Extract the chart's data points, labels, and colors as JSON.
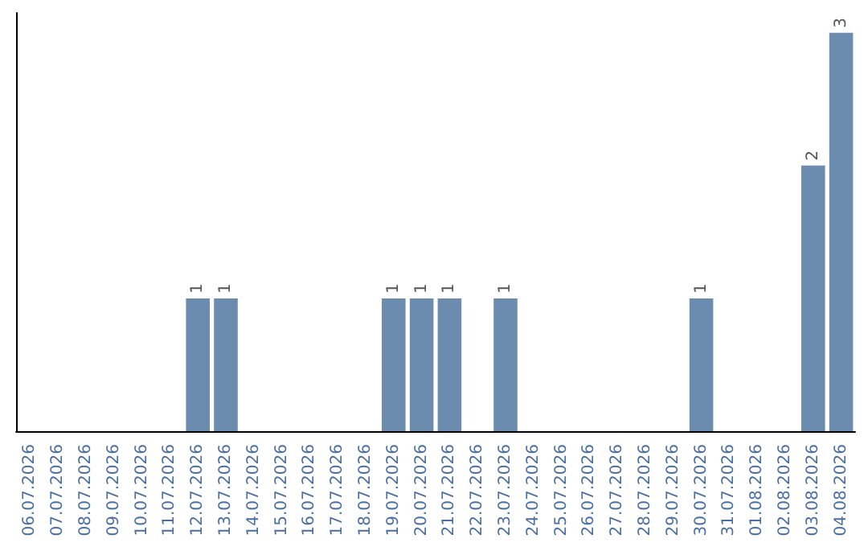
{
  "chart_data": {
    "type": "bar",
    "categories": [
      "06.07.2026",
      "07.07.2026",
      "08.07.2026",
      "09.07.2026",
      "10.07.2026",
      "11.07.2026",
      "12.07.2026",
      "13.07.2026",
      "14.07.2026",
      "15.07.2026",
      "16.07.2026",
      "17.07.2026",
      "18.07.2026",
      "19.07.2026",
      "20.07.2026",
      "21.07.2026",
      "22.07.2026",
      "23.07.2026",
      "24.07.2026",
      "25.07.2026",
      "26.07.2026",
      "27.07.2026",
      "28.07.2026",
      "29.07.2026",
      "30.07.2026",
      "31.07.2026",
      "01.08.2026",
      "02.08.2026",
      "03.08.2026",
      "04.08.2026"
    ],
    "values": [
      0,
      0,
      0,
      0,
      0,
      0,
      1,
      1,
      0,
      0,
      0,
      0,
      0,
      1,
      1,
      1,
      0,
      1,
      0,
      0,
      0,
      0,
      0,
      0,
      1,
      0,
      0,
      0,
      2,
      3
    ],
    "value_labels": [
      null,
      null,
      null,
      null,
      null,
      null,
      "1",
      "1",
      null,
      null,
      null,
      null,
      null,
      "1",
      "1",
      "1",
      null,
      "1",
      null,
      null,
      null,
      null,
      null,
      null,
      "1",
      null,
      null,
      null,
      "2",
      "3"
    ],
    "color": "#6b8cae",
    "tick_labels": "x",
    "grid": false
  }
}
